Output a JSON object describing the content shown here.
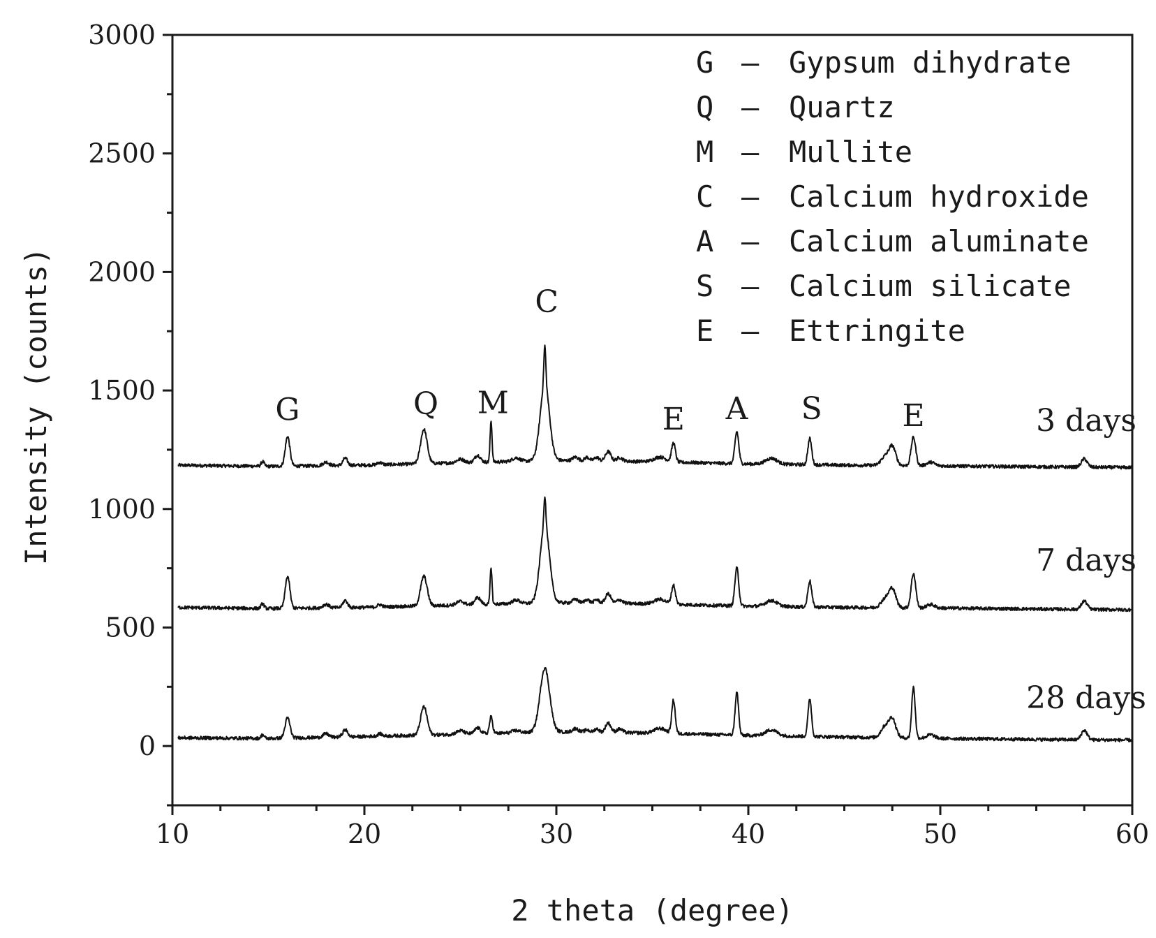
{
  "chart_data": {
    "type": "line",
    "xlabel": "2 theta (degree)",
    "ylabel": "Intensity (counts)",
    "xlim": [
      10,
      60
    ],
    "ylim": [
      -250,
      3000
    ],
    "xticks": [
      10,
      20,
      30,
      40,
      50,
      60
    ],
    "yticks": [
      0,
      500,
      1000,
      1500,
      2000,
      2500,
      3000
    ],
    "grid": false,
    "legend": {
      "placement": "top-right",
      "entries": [
        {
          "symbol": "G",
          "dash": "–",
          "name": "Gypsum dihydrate"
        },
        {
          "symbol": "Q",
          "dash": "–",
          "name": "Quartz"
        },
        {
          "symbol": "M",
          "dash": "–",
          "name": "Mullite"
        },
        {
          "symbol": "C",
          "dash": "–",
          "name": "Calcium hydroxide"
        },
        {
          "symbol": "A",
          "dash": "–",
          "name": "Calcium aluminate"
        },
        {
          "symbol": "S",
          "dash": "–",
          "name": "Calcium silicate"
        },
        {
          "symbol": "E",
          "dash": "–",
          "name": "Ettringite"
        }
      ]
    },
    "peak_labels": [
      {
        "label": "G",
        "x": 16.0,
        "y": 1375
      },
      {
        "label": "Q",
        "x": 23.2,
        "y": 1400
      },
      {
        "label": "M",
        "x": 26.7,
        "y": 1405
      },
      {
        "label": "C",
        "x": 29.5,
        "y": 1830
      },
      {
        "label": "E",
        "x": 36.1,
        "y": 1335
      },
      {
        "label": "A",
        "x": 39.4,
        "y": 1380
      },
      {
        "label": "S",
        "x": 43.3,
        "y": 1380
      },
      {
        "label": "E",
        "x": 48.6,
        "y": 1350
      }
    ],
    "series": [
      {
        "name": "3 days",
        "label_x": 57.6,
        "label_y": 1330,
        "baseline": [
          [
            10,
            1185
          ],
          [
            15,
            1180
          ],
          [
            20,
            1185
          ],
          [
            25,
            1195
          ],
          [
            30,
            1205
          ],
          [
            35,
            1200
          ],
          [
            40,
            1190
          ],
          [
            45,
            1185
          ],
          [
            50,
            1182
          ],
          [
            55,
            1178
          ],
          [
            60,
            1175
          ]
        ],
        "peaks": [
          {
            "x": 14.7,
            "h": 20,
            "w": 0.08
          },
          {
            "x": 16.0,
            "h": 125,
            "w": 0.12
          },
          {
            "x": 18.0,
            "h": 15,
            "w": 0.15
          },
          {
            "x": 19.0,
            "h": 30,
            "w": 0.12
          },
          {
            "x": 20.8,
            "h": 10,
            "w": 0.12
          },
          {
            "x": 23.1,
            "h": 145,
            "w": 0.17
          },
          {
            "x": 25.0,
            "h": 15,
            "w": 0.2
          },
          {
            "x": 25.9,
            "h": 30,
            "w": 0.15
          },
          {
            "x": 26.6,
            "h": 175,
            "w": 0.05
          },
          {
            "x": 27.9,
            "h": 15,
            "w": 0.2
          },
          {
            "x": 29.4,
            "h": 325,
            "w": 0.24
          },
          {
            "x": 29.4,
            "h": 160,
            "w": 0.05
          },
          {
            "x": 31.0,
            "h": 15,
            "w": 0.15
          },
          {
            "x": 31.6,
            "h": 15,
            "w": 0.12
          },
          {
            "x": 32.1,
            "h": 15,
            "w": 0.12
          },
          {
            "x": 32.7,
            "h": 40,
            "w": 0.14
          },
          {
            "x": 33.3,
            "h": 15,
            "w": 0.15
          },
          {
            "x": 35.4,
            "h": 20,
            "w": 0.3
          },
          {
            "x": 36.1,
            "h": 80,
            "w": 0.1
          },
          {
            "x": 39.4,
            "h": 135,
            "w": 0.1
          },
          {
            "x": 41.2,
            "h": 25,
            "w": 0.3
          },
          {
            "x": 43.2,
            "h": 110,
            "w": 0.1
          },
          {
            "x": 47.1,
            "h": 35,
            "w": 0.2
          },
          {
            "x": 47.5,
            "h": 80,
            "w": 0.18
          },
          {
            "x": 48.6,
            "h": 120,
            "w": 0.12
          },
          {
            "x": 49.5,
            "h": 15,
            "w": 0.2
          },
          {
            "x": 57.5,
            "h": 35,
            "w": 0.15
          }
        ]
      },
      {
        "name": "7 days",
        "label_x": 57.6,
        "label_y": 740,
        "baseline": [
          [
            10,
            585
          ],
          [
            15,
            580
          ],
          [
            20,
            585
          ],
          [
            25,
            595
          ],
          [
            30,
            605
          ],
          [
            35,
            600
          ],
          [
            40,
            590
          ],
          [
            45,
            585
          ],
          [
            50,
            582
          ],
          [
            55,
            578
          ],
          [
            60,
            575
          ]
        ],
        "peaks": [
          {
            "x": 14.7,
            "h": 20,
            "w": 0.08
          },
          {
            "x": 16.0,
            "h": 135,
            "w": 0.12
          },
          {
            "x": 18.0,
            "h": 15,
            "w": 0.15
          },
          {
            "x": 19.0,
            "h": 30,
            "w": 0.12
          },
          {
            "x": 20.8,
            "h": 10,
            "w": 0.12
          },
          {
            "x": 23.1,
            "h": 125,
            "w": 0.17
          },
          {
            "x": 25.0,
            "h": 15,
            "w": 0.2
          },
          {
            "x": 25.9,
            "h": 30,
            "w": 0.15
          },
          {
            "x": 26.6,
            "h": 155,
            "w": 0.05
          },
          {
            "x": 27.9,
            "h": 15,
            "w": 0.2
          },
          {
            "x": 29.4,
            "h": 330,
            "w": 0.24
          },
          {
            "x": 29.4,
            "h": 120,
            "w": 0.05
          },
          {
            "x": 31.0,
            "h": 15,
            "w": 0.15
          },
          {
            "x": 31.6,
            "h": 15,
            "w": 0.12
          },
          {
            "x": 32.1,
            "h": 15,
            "w": 0.12
          },
          {
            "x": 32.7,
            "h": 40,
            "w": 0.14
          },
          {
            "x": 33.3,
            "h": 15,
            "w": 0.15
          },
          {
            "x": 35.4,
            "h": 20,
            "w": 0.3
          },
          {
            "x": 36.1,
            "h": 80,
            "w": 0.1
          },
          {
            "x": 39.4,
            "h": 160,
            "w": 0.1
          },
          {
            "x": 41.2,
            "h": 25,
            "w": 0.3
          },
          {
            "x": 43.2,
            "h": 110,
            "w": 0.1
          },
          {
            "x": 47.1,
            "h": 35,
            "w": 0.2
          },
          {
            "x": 47.5,
            "h": 80,
            "w": 0.18
          },
          {
            "x": 48.6,
            "h": 145,
            "w": 0.12
          },
          {
            "x": 49.5,
            "h": 15,
            "w": 0.2
          },
          {
            "x": 57.5,
            "h": 35,
            "w": 0.15
          }
        ]
      },
      {
        "name": "28 days",
        "label_x": 57.6,
        "label_y": 160,
        "baseline": [
          [
            10,
            35
          ],
          [
            15,
            32
          ],
          [
            20,
            40
          ],
          [
            25,
            50
          ],
          [
            30,
            60
          ],
          [
            35,
            55
          ],
          [
            40,
            45
          ],
          [
            45,
            38
          ],
          [
            50,
            32
          ],
          [
            55,
            28
          ],
          [
            60,
            25
          ]
        ],
        "peaks": [
          {
            "x": 14.7,
            "h": 15,
            "w": 0.08
          },
          {
            "x": 16.0,
            "h": 85,
            "w": 0.13
          },
          {
            "x": 18.0,
            "h": 15,
            "w": 0.15
          },
          {
            "x": 19.0,
            "h": 30,
            "w": 0.13
          },
          {
            "x": 20.8,
            "h": 10,
            "w": 0.12
          },
          {
            "x": 23.1,
            "h": 120,
            "w": 0.17
          },
          {
            "x": 25.0,
            "h": 15,
            "w": 0.2
          },
          {
            "x": 25.9,
            "h": 25,
            "w": 0.15
          },
          {
            "x": 26.6,
            "h": 70,
            "w": 0.08
          },
          {
            "x": 27.9,
            "h": 10,
            "w": 0.2
          },
          {
            "x": 29.4,
            "h": 270,
            "w": 0.25
          },
          {
            "x": 31.0,
            "h": 15,
            "w": 0.15
          },
          {
            "x": 31.6,
            "h": 10,
            "w": 0.12
          },
          {
            "x": 32.1,
            "h": 15,
            "w": 0.12
          },
          {
            "x": 32.7,
            "h": 40,
            "w": 0.14
          },
          {
            "x": 33.3,
            "h": 15,
            "w": 0.15
          },
          {
            "x": 35.4,
            "h": 20,
            "w": 0.3
          },
          {
            "x": 36.1,
            "h": 140,
            "w": 0.09
          },
          {
            "x": 39.4,
            "h": 180,
            "w": 0.09
          },
          {
            "x": 41.2,
            "h": 25,
            "w": 0.3
          },
          {
            "x": 43.2,
            "h": 160,
            "w": 0.09
          },
          {
            "x": 47.1,
            "h": 45,
            "w": 0.2
          },
          {
            "x": 47.5,
            "h": 80,
            "w": 0.18
          },
          {
            "x": 48.6,
            "h": 215,
            "w": 0.09
          },
          {
            "x": 49.5,
            "h": 15,
            "w": 0.2
          },
          {
            "x": 57.5,
            "h": 40,
            "w": 0.15
          }
        ]
      }
    ],
    "line_color": "#111111"
  }
}
